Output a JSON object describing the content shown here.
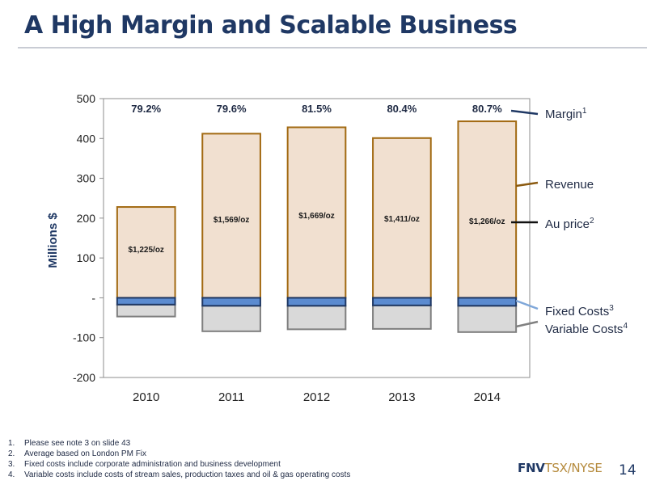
{
  "slide": {
    "title": "A High Margin and Scalable Business",
    "page_number": "14",
    "brand": {
      "part1": "FNV",
      "part2": "TSX/NYSE"
    }
  },
  "footnotes": [
    {
      "num": "1.",
      "text": "Please see note 3 on slide 43"
    },
    {
      "num": "2.",
      "text": "Average based on London PM Fix"
    },
    {
      "num": "3.",
      "text": "Fixed costs include corporate administration and business development"
    },
    {
      "num": "4.",
      "text": "Variable costs include costs of stream sales, production taxes and oil & gas operating costs"
    }
  ],
  "chart_data": {
    "type": "bar",
    "stacked": true,
    "categories": [
      "2010",
      "2011",
      "2012",
      "2013",
      "2014"
    ],
    "ylabel": "Millions $",
    "ylim": [
      -200,
      500
    ],
    "yticks": [
      {
        "value": 500,
        "label": "500"
      },
      {
        "value": 400,
        "label": "400"
      },
      {
        "value": 300,
        "label": "300"
      },
      {
        "value": 200,
        "label": "200"
      },
      {
        "value": 100,
        "label": "100"
      },
      {
        "value": 0,
        "label": "-"
      },
      {
        "value": -100,
        "label": "-100"
      },
      {
        "value": -200,
        "label": "-200"
      }
    ],
    "series": [
      {
        "name": "Revenue",
        "values": [
          228,
          412,
          428,
          401,
          443
        ]
      },
      {
        "name": "Fixed Costs",
        "values": [
          -17,
          -20,
          -20,
          -19,
          -20
        ]
      },
      {
        "name": "Variable Costs",
        "values": [
          -30,
          -64,
          -59,
          -59,
          -66
        ]
      }
    ],
    "margins": [
      "79.2%",
      "79.6%",
      "81.5%",
      "80.4%",
      "80.7%"
    ],
    "au_prices": [
      "$1,225/oz",
      "$1,569/oz",
      "$1,669/oz",
      "$1,411/oz",
      "$1,266/oz"
    ],
    "legend": [
      {
        "label": "Margin",
        "sup": "1",
        "color": "#1f3864"
      },
      {
        "label": "Revenue",
        "sup": "",
        "color": "#8b5a10"
      },
      {
        "label": "Au price",
        "sup": "2",
        "color": "#111111"
      },
      {
        "label": "Fixed Costs",
        "sup": "3",
        "color": "#7fa7d9"
      },
      {
        "label": "Variable Costs",
        "sup": "4",
        "color": "#808080"
      }
    ],
    "colors": {
      "revenue_fill": "#f1e0d0",
      "revenue_border": "#a26a12",
      "fixed_fill": "#5b8bd0",
      "fixed_border": "#1f3864",
      "variable_fill": "#d9d9d9",
      "variable_border": "#7f7f7f"
    },
    "legend_placement": "right",
    "grid": false
  }
}
